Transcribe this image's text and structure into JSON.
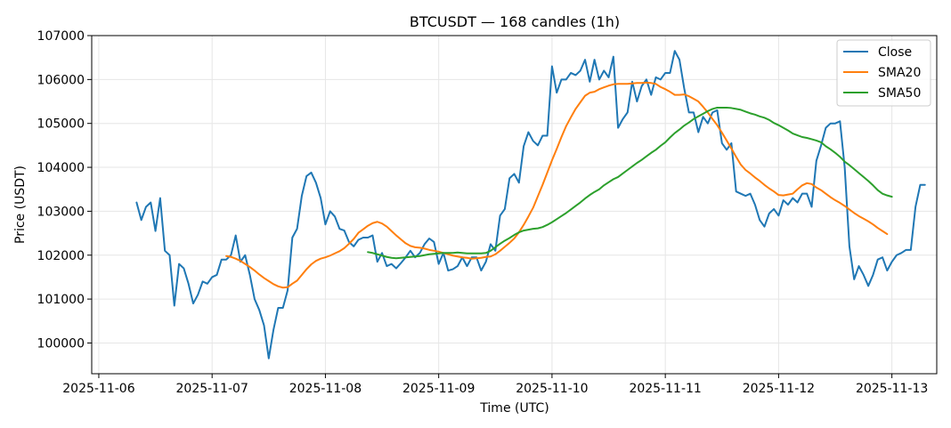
{
  "chart_data": {
    "type": "line",
    "title": "BTCUSDT — 168 candles (1h)",
    "xlabel": "Time (UTC)",
    "ylabel": "Price (USDT)",
    "ylim": [
      99300,
      107000
    ],
    "yticks": [
      100000,
      101000,
      102000,
      103000,
      104000,
      105000,
      106000,
      107000
    ],
    "x_unit": "hours",
    "xlim": [
      -9.5,
      169.5
    ],
    "x_start": "2025-11-06T08:00",
    "xticks": [
      {
        "label": "2025-11-06",
        "x": -8
      },
      {
        "label": "2025-11-07",
        "x": 16
      },
      {
        "label": "2025-11-08",
        "x": 40
      },
      {
        "label": "2025-11-09",
        "x": 64
      },
      {
        "label": "2025-11-10",
        "x": 88
      },
      {
        "label": "2025-11-11",
        "x": 112
      },
      {
        "label": "2025-11-12",
        "x": 136
      },
      {
        "label": "2025-11-13",
        "x": 160
      }
    ],
    "grid": true,
    "legend": "top-right",
    "series": [
      {
        "name": "Close",
        "color": "#1f77b4",
        "start": 0,
        "values": [
          103200,
          102800,
          103100,
          103200,
          102550,
          103300,
          102100,
          102000,
          100850,
          101800,
          101700,
          101350,
          100900,
          101100,
          101400,
          101350,
          101500,
          101550,
          101900,
          101900,
          102000,
          102450,
          101850,
          102000,
          101550,
          101000,
          100750,
          100400,
          99650,
          100300,
          100800,
          100800,
          101200,
          102400,
          102600,
          103350,
          103800,
          103880,
          103650,
          103300,
          102700,
          103000,
          102880,
          102600,
          102560,
          102300,
          102200,
          102350,
          102400,
          102400,
          102450,
          101850,
          102050,
          101750,
          101800,
          101700,
          101820,
          101950,
          102100,
          101950,
          102050,
          102250,
          102380,
          102300,
          101800,
          102050,
          101650,
          101680,
          101750,
          101950,
          101750,
          101950,
          101950,
          101650,
          101850,
          102250,
          102100,
          102900,
          103050,
          103750,
          103850,
          103650,
          104480,
          104800,
          104600,
          104500,
          104720,
          104720,
          106300,
          105700,
          106000,
          106000,
          106150,
          106100,
          106200,
          106450,
          105950,
          106450,
          106000,
          106200,
          106050,
          106520,
          104900,
          105100,
          105250,
          105950,
          105500,
          105850,
          106000,
          105650,
          106050,
          106000,
          106150,
          106150,
          106650,
          106450,
          105800,
          105250,
          105250,
          104800,
          105150,
          105000,
          105250,
          105300,
          104550,
          104400,
          104550,
          103450,
          103400,
          103350,
          103400,
          103150,
          102800,
          102650,
          102950,
          103050,
          102900,
          103250,
          103150,
          103300,
          103200,
          103400,
          103400,
          103100,
          104150,
          104500,
          104900,
          105000,
          105000,
          105050,
          104000,
          102200,
          101450,
          101750,
          101550,
          101300,
          101550,
          101900,
          101950,
          101650,
          101850,
          102000,
          102050,
          102120,
          102120,
          103100,
          103600,
          103600
        ]
      },
      {
        "name": "SMA20",
        "color": "#ff7f0e",
        "start": 19,
        "values": [
          101980,
          101960,
          101920,
          101870,
          101800,
          101730,
          101650,
          101560,
          101480,
          101410,
          101340,
          101290,
          101260,
          101270,
          101350,
          101420,
          101550,
          101680,
          101790,
          101870,
          101920,
          101950,
          101990,
          102040,
          102090,
          102160,
          102260,
          102370,
          102510,
          102590,
          102670,
          102730,
          102760,
          102720,
          102650,
          102550,
          102450,
          102360,
          102270,
          102210,
          102180,
          102170,
          102150,
          102120,
          102100,
          102080,
          102050,
          102020,
          101990,
          101970,
          101950,
          101940,
          101920,
          101930,
          101940,
          101960,
          101970,
          102020,
          102100,
          102190,
          102280,
          102380,
          102520,
          102690,
          102880,
          103080,
          103340,
          103600,
          103880,
          104160,
          104420,
          104690,
          104940,
          105140,
          105330,
          105480,
          105630,
          105700,
          105720,
          105780,
          105820,
          105860,
          105890,
          105900,
          105900,
          105900,
          105910,
          105920,
          105920,
          105930,
          105920,
          105900,
          105830,
          105780,
          105720,
          105650,
          105650,
          105660,
          105620,
          105560,
          105500,
          105380,
          105250,
          105100,
          104960,
          104790,
          104610,
          104430,
          104240,
          104060,
          103940,
          103860,
          103770,
          103690,
          103600,
          103520,
          103450,
          103370,
          103360,
          103380,
          103400,
          103500,
          103590,
          103640,
          103620,
          103540,
          103480,
          103400,
          103320,
          103250,
          103190,
          103120,
          103040,
          102960,
          102890,
          102830,
          102770,
          102700,
          102620,
          102550,
          102480
        ]
      },
      {
        "name": "SMA50",
        "color": "#2ca02c",
        "start": 49,
        "values": [
          102070,
          102050,
          102020,
          101990,
          101960,
          101940,
          101930,
          101940,
          101950,
          101960,
          101970,
          101980,
          102000,
          102020,
          102030,
          102040,
          102050,
          102050,
          102050,
          102060,
          102050,
          102040,
          102040,
          102040,
          102040,
          102050,
          102100,
          102180,
          102260,
          102330,
          102390,
          102460,
          102520,
          102560,
          102580,
          102600,
          102610,
          102640,
          102690,
          102750,
          102820,
          102890,
          102960,
          103040,
          103120,
          103200,
          103290,
          103370,
          103440,
          103500,
          103590,
          103660,
          103730,
          103780,
          103860,
          103940,
          104020,
          104100,
          104170,
          104250,
          104330,
          104400,
          104490,
          104570,
          104680,
          104780,
          104860,
          104950,
          105020,
          105100,
          105160,
          105220,
          105280,
          105330,
          105360,
          105360,
          105360,
          105350,
          105330,
          105310,
          105270,
          105230,
          105200,
          105160,
          105130,
          105080,
          105010,
          104960,
          104900,
          104840,
          104770,
          104730,
          104690,
          104670,
          104640,
          104610,
          104570,
          104480,
          104410,
          104330,
          104240,
          104130,
          104050,
          103960,
          103870,
          103780,
          103690,
          103590,
          103480,
          103400,
          103360,
          103330
        ]
      }
    ]
  }
}
